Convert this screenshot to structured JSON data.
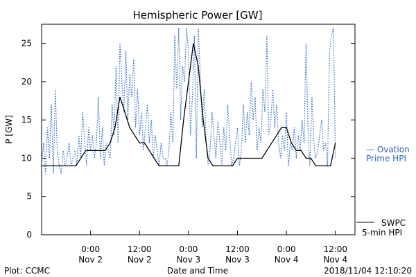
{
  "chart_data": {
    "type": "line",
    "title": "Hemispheric Power [GW]",
    "ylabel": "P [GW]",
    "xlabel": "Date and Time",
    "ylim": [
      0,
      27.5
    ],
    "xlim": [
      -15,
      17
    ],
    "yticks": [
      0,
      5,
      10,
      15,
      20,
      25
    ],
    "x_ticks": [
      {
        "x": -10,
        "time": "0:00",
        "date": "Nov 2"
      },
      {
        "x": -5,
        "time": "12:00",
        "date": "Nov 2"
      },
      {
        "x": 0,
        "time": "0:00",
        "date": "Nov 3"
      },
      {
        "x": 5,
        "time": "12:00",
        "date": "Nov 3"
      },
      {
        "x": 10,
        "time": "0:00",
        "date": "Nov 4"
      },
      {
        "x": 15,
        "time": "12:00",
        "date": "Nov 4"
      }
    ],
    "x_unit_note": "",
    "series": [
      {
        "name": "Ovation Prime HPI",
        "color": "#2a64c8",
        "style": "dotted",
        "x": [
          -15.0,
          -14.8,
          -14.6,
          -14.4,
          -14.2,
          -14.0,
          -13.8,
          -13.6,
          -13.4,
          -13.2,
          -13.0,
          -12.8,
          -12.6,
          -12.4,
          -12.2,
          -12.0,
          -11.8,
          -11.6,
          -11.4,
          -11.2,
          -11.0,
          -10.8,
          -10.6,
          -10.4,
          -10.2,
          -10.0,
          -9.8,
          -9.6,
          -9.4,
          -9.2,
          -9.0,
          -8.8,
          -8.6,
          -8.4,
          -8.2,
          -8.0,
          -7.8,
          -7.6,
          -7.4,
          -7.2,
          -7.0,
          -6.8,
          -6.6,
          -6.4,
          -6.2,
          -6.0,
          -5.8,
          -5.6,
          -5.4,
          -5.2,
          -5.0,
          -4.8,
          -4.6,
          -4.4,
          -4.2,
          -4.0,
          -3.8,
          -3.6,
          -3.4,
          -3.2,
          -3.0,
          -2.8,
          -2.6,
          -2.4,
          -2.2,
          -2.0,
          -1.8,
          -1.6,
          -1.4,
          -1.2,
          -1.0,
          -0.8,
          -0.6,
          -0.4,
          -0.2,
          0.0,
          0.2,
          0.4,
          0.6,
          0.8,
          1.0,
          1.2,
          1.4,
          1.6,
          1.8,
          2.0,
          2.2,
          2.4,
          2.6,
          2.8,
          3.0,
          3.2,
          3.4,
          3.6,
          3.8,
          4.0,
          4.2,
          4.4,
          4.6,
          4.8,
          5.0,
          5.2,
          5.4,
          5.6,
          5.8,
          6.0,
          6.2,
          6.4,
          6.6,
          6.8,
          7.0,
          7.2,
          7.4,
          7.6,
          7.8,
          8.0,
          8.2,
          8.4,
          8.6,
          8.8,
          9.0,
          9.2,
          9.4,
          9.6,
          9.8,
          10.0,
          10.2,
          10.4,
          10.6,
          10.8,
          11.0,
          11.2,
          11.4,
          11.6,
          11.8,
          12.0,
          12.2,
          12.4,
          12.6,
          12.8,
          13.0,
          13.2,
          13.4,
          13.6,
          13.8,
          14.0,
          14.2,
          14.4,
          14.6,
          14.8,
          15.0
        ],
        "y": [
          9,
          12,
          8,
          14,
          10,
          17,
          8,
          19,
          11,
          9,
          8,
          11,
          9,
          10,
          12,
          9,
          10,
          11,
          9,
          13,
          10,
          16,
          12,
          9,
          14,
          11,
          13,
          10,
          12,
          18,
          10,
          14,
          9,
          12,
          11,
          10,
          17,
          13,
          22,
          12,
          25,
          20,
          16,
          24,
          15,
          21,
          18,
          23,
          14,
          19,
          13,
          16,
          11,
          14,
          17,
          12,
          15,
          10,
          13,
          11,
          9,
          12,
          10,
          10,
          9,
          11,
          16,
          12,
          26,
          19,
          27,
          15,
          22,
          20,
          27,
          24,
          13,
          18,
          26,
          10,
          27,
          21,
          14,
          19,
          12,
          9,
          11,
          16,
          13,
          10,
          15,
          12,
          9,
          14,
          11,
          17,
          13,
          9,
          10,
          12,
          14,
          9,
          11,
          17,
          12,
          16,
          13,
          20,
          15,
          18,
          11,
          14,
          12,
          19,
          16,
          26,
          13,
          15,
          19,
          14,
          17,
          12,
          10,
          13,
          11,
          16,
          9,
          12,
          11,
          14,
          10,
          13,
          11,
          15,
          12,
          25,
          14,
          9,
          18,
          12,
          10,
          11,
          13,
          15,
          11,
          12,
          9,
          24,
          26,
          27,
          10
        ],
        "visible": true
      },
      {
        "name": "SWPC 5-min HPI",
        "color": "#000000",
        "style": "solid",
        "x": [
          -15.0,
          -14.5,
          -14.0,
          -13.5,
          -13.0,
          -12.5,
          -12.0,
          -11.5,
          -11.0,
          -10.5,
          -10.0,
          -9.5,
          -9.0,
          -8.5,
          -8.0,
          -7.5,
          -7.0,
          -6.5,
          -6.0,
          -5.5,
          -5.0,
          -4.5,
          -4.0,
          -3.5,
          -3.0,
          -2.5,
          -2.0,
          -1.5,
          -1.0,
          -0.5,
          0.0,
          0.5,
          1.0,
          1.5,
          2.0,
          2.5,
          3.0,
          3.5,
          4.0,
          4.5,
          5.0,
          5.5,
          6.0,
          6.5,
          7.0,
          7.5,
          8.0,
          8.5,
          9.0,
          9.5,
          10.0,
          10.5,
          11.0,
          11.5,
          12.0,
          12.5,
          13.0,
          13.5,
          14.0,
          14.5,
          15.0
        ],
        "y": [
          9,
          9,
          9,
          9,
          9,
          9,
          9,
          9,
          10,
          11,
          11,
          11,
          11,
          11,
          12,
          14,
          18,
          16,
          14,
          13,
          12,
          12,
          11,
          10,
          9,
          9,
          9,
          9,
          9,
          15,
          20,
          25,
          22,
          15,
          10,
          9,
          9,
          9,
          9,
          9,
          10,
          10,
          10,
          10,
          10,
          10,
          11,
          12,
          13,
          14,
          14,
          12,
          11,
          11,
          10,
          10,
          9,
          9,
          9,
          9,
          12
        ],
        "visible": true
      }
    ],
    "legend": [
      {
        "line1": "— Ovation",
        "line2": "Prime HPI",
        "color": "#2a64c8"
      },
      {
        "line1": "SWPC",
        "line2": "5-min HPI",
        "color": "#000000"
      }
    ]
  },
  "footer": {
    "left": "Plot: CCMC",
    "right": "2018/11/04 12:10:20"
  }
}
